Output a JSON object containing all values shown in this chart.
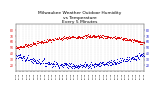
{
  "title": "Milwaukee Weather Outdoor Humidity\nvs Temperature\nEvery 5 Minutes",
  "title_fontsize": 3.2,
  "background_color": "#ffffff",
  "plot_bg_color": "#ffffff",
  "grid_color": "#bbbbbb",
  "red_color": "#dd0000",
  "blue_color": "#0000cc",
  "ylim_left": [
    10,
    90
  ],
  "ylim_right": [
    10,
    90
  ],
  "yticks_left": [
    20,
    30,
    40,
    50,
    60,
    70,
    80
  ],
  "yticks_right": [
    20,
    30,
    40,
    50,
    60,
    70,
    80
  ],
  "n_points": 288,
  "seed": 7,
  "marker_size": 0.5
}
